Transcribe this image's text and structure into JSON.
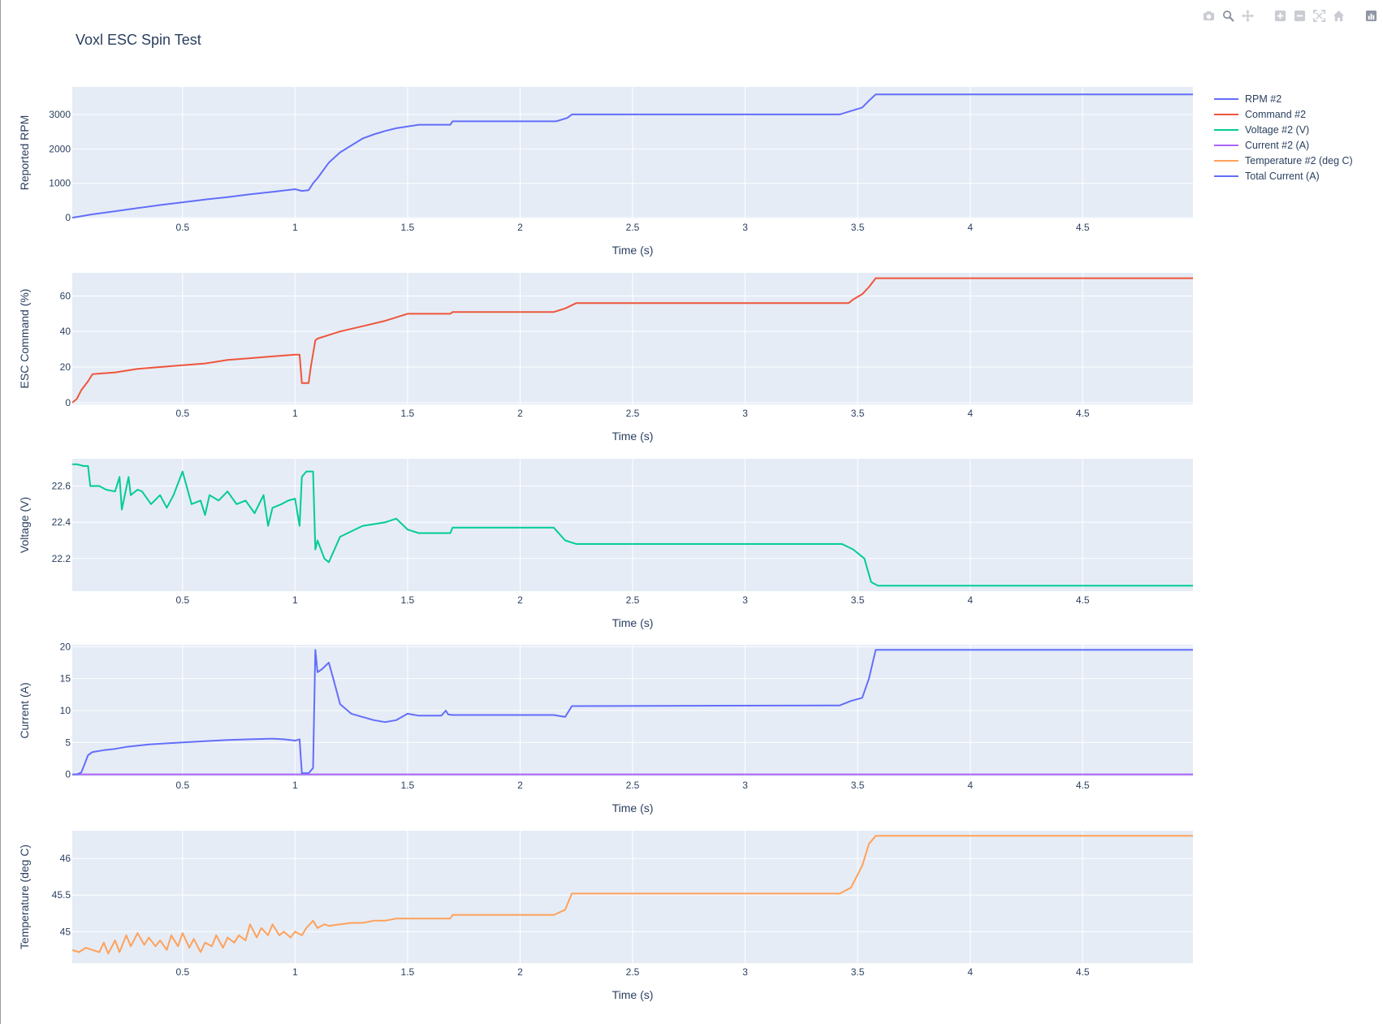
{
  "title": "Voxl ESC Spin Test",
  "modebar": {
    "icons": [
      "camera-icon",
      "zoom-icon",
      "pan-icon",
      "zoom-in-icon",
      "zoom-out-icon",
      "autoscale-icon",
      "reset-axes-icon",
      "plotly-logo-icon"
    ]
  },
  "colors": {
    "background": "#ffffff",
    "plot_bg": "#e5ecf6",
    "grid": "#ffffff",
    "text": "#2a3f5f",
    "rpm": "#636efa",
    "command": "#ef553b",
    "voltage": "#00cc96",
    "current": "#ab63fa",
    "temperature": "#ffa15a",
    "total_current": "#636efa"
  },
  "legend": {
    "items": [
      {
        "label": "RPM #2",
        "color": "#636efa"
      },
      {
        "label": "Command #2",
        "color": "#ef553b"
      },
      {
        "label": "Voltage #2 (V)",
        "color": "#00cc96"
      },
      {
        "label": "Current #2 (A)",
        "color": "#ab63fa"
      },
      {
        "label": "Temperature #2 (deg C)",
        "color": "#ffa15a"
      },
      {
        "label": "Total Current (A)",
        "color": "#636efa"
      }
    ]
  },
  "chart_data": [
    {
      "type": "line",
      "xlabel": "Time (s)",
      "ylabel": "Reported RPM",
      "xlim": [
        0.01,
        4.99
      ],
      "xticks": [
        0.5,
        1,
        1.5,
        2,
        2.5,
        3,
        3.5,
        4,
        4.5
      ],
      "xtick_labels": [
        "0.5",
        "1",
        "1.5",
        "2",
        "2.5",
        "3",
        "3.5",
        "4",
        "4.5"
      ],
      "ylim": [
        -20,
        3800
      ],
      "yticks": [
        0,
        1000,
        2000,
        3000
      ],
      "ytick_labels": [
        "0",
        "1000",
        "2000",
        "3000"
      ],
      "series": [
        {
          "name": "RPM #2",
          "color": "#636efa",
          "x": [
            0.01,
            0.1,
            0.2,
            0.3,
            0.4,
            0.5,
            0.6,
            0.7,
            0.8,
            0.9,
            1.0,
            1.03,
            1.06,
            1.08,
            1.1,
            1.15,
            1.2,
            1.25,
            1.3,
            1.35,
            1.4,
            1.45,
            1.5,
            1.55,
            1.69,
            1.7,
            2.16,
            2.21,
            2.23,
            3.42,
            3.47,
            3.52,
            3.55,
            3.58,
            4.99
          ],
          "values": [
            0,
            100,
            190,
            280,
            370,
            450,
            530,
            600,
            680,
            750,
            830,
            780,
            800,
            1000,
            1150,
            1600,
            1900,
            2100,
            2300,
            2420,
            2520,
            2600,
            2650,
            2700,
            2700,
            2800,
            2800,
            2900,
            3000,
            3000,
            3100,
            3200,
            3400,
            3580,
            3580
          ]
        }
      ]
    },
    {
      "type": "line",
      "xlabel": "Time (s)",
      "ylabel": "ESC Command (%)",
      "xlim": [
        0.01,
        4.99
      ],
      "xticks": [
        0.5,
        1,
        1.5,
        2,
        2.5,
        3,
        3.5,
        4,
        4.5
      ],
      "xtick_labels": [
        "0.5",
        "1",
        "1.5",
        "2",
        "2.5",
        "3",
        "3.5",
        "4",
        "4.5"
      ],
      "ylim": [
        -1,
        73
      ],
      "yticks": [
        0,
        20,
        40,
        60
      ],
      "ytick_labels": [
        "0",
        "20",
        "40",
        "60"
      ],
      "series": [
        {
          "name": "Command #2",
          "color": "#ef553b",
          "x": [
            0.01,
            0.03,
            0.05,
            0.08,
            0.1,
            0.2,
            0.3,
            0.4,
            0.5,
            0.6,
            0.7,
            0.8,
            0.9,
            1.0,
            1.02,
            1.03,
            1.06,
            1.07,
            1.09,
            1.1,
            1.15,
            1.2,
            1.3,
            1.4,
            1.5,
            1.69,
            1.7,
            2.15,
            2.2,
            2.25,
            3.46,
            3.48,
            3.52,
            3.55,
            3.58,
            4.99
          ],
          "values": [
            0,
            2,
            7,
            12,
            16,
            17,
            19,
            20,
            21,
            22,
            24,
            25,
            26,
            27,
            27,
            11,
            11,
            20,
            35,
            36,
            38,
            40,
            43,
            46,
            50,
            50,
            51,
            51,
            53,
            56,
            56,
            58,
            61,
            65,
            70,
            70
          ]
        }
      ]
    },
    {
      "type": "line",
      "xlabel": "Time (s)",
      "ylabel": "Voltage (V)",
      "xlim": [
        0.01,
        4.99
      ],
      "xticks": [
        0.5,
        1,
        1.5,
        2,
        2.5,
        3,
        3.5,
        4,
        4.5
      ],
      "xtick_labels": [
        "0.5",
        "1",
        "1.5",
        "2",
        "2.5",
        "3",
        "3.5",
        "4",
        "4.5"
      ],
      "ylim": [
        22.02,
        22.75
      ],
      "yticks": [
        22.2,
        22.4,
        22.6
      ],
      "ytick_labels": [
        "22.2",
        "22.4",
        "22.6"
      ],
      "series": [
        {
          "name": "Voltage #2 (V)",
          "color": "#00cc96",
          "x": [
            0.01,
            0.03,
            0.06,
            0.08,
            0.09,
            0.13,
            0.16,
            0.2,
            0.22,
            0.23,
            0.26,
            0.27,
            0.3,
            0.32,
            0.36,
            0.4,
            0.43,
            0.46,
            0.5,
            0.54,
            0.58,
            0.6,
            0.62,
            0.66,
            0.7,
            0.74,
            0.78,
            0.82,
            0.86,
            0.88,
            0.9,
            0.94,
            0.97,
            1.0,
            1.02,
            1.03,
            1.05,
            1.08,
            1.09,
            1.1,
            1.13,
            1.15,
            1.2,
            1.3,
            1.4,
            1.45,
            1.5,
            1.55,
            1.69,
            1.7,
            2.15,
            2.2,
            2.25,
            3.43,
            3.48,
            3.53,
            3.56,
            3.59,
            4.99
          ],
          "values": [
            22.72,
            22.72,
            22.71,
            22.71,
            22.6,
            22.6,
            22.58,
            22.57,
            22.65,
            22.47,
            22.65,
            22.55,
            22.58,
            22.57,
            22.5,
            22.55,
            22.48,
            22.55,
            22.68,
            22.5,
            22.52,
            22.44,
            22.55,
            22.52,
            22.57,
            22.5,
            22.52,
            22.45,
            22.55,
            22.38,
            22.48,
            22.5,
            22.52,
            22.53,
            22.38,
            22.65,
            22.68,
            22.68,
            22.25,
            22.3,
            22.2,
            22.18,
            22.32,
            22.38,
            22.4,
            22.42,
            22.36,
            22.34,
            22.34,
            22.37,
            22.37,
            22.3,
            22.28,
            22.28,
            22.25,
            22.2,
            22.07,
            22.05,
            22.05
          ]
        }
      ]
    },
    {
      "type": "line",
      "xlabel": "Time (s)",
      "ylabel": "Current (A)",
      "xlim": [
        0.01,
        4.99
      ],
      "xticks": [
        0.5,
        1,
        1.5,
        2,
        2.5,
        3,
        3.5,
        4,
        4.5
      ],
      "xtick_labels": [
        "0.5",
        "1",
        "1.5",
        "2",
        "2.5",
        "3",
        "3.5",
        "4",
        "4.5"
      ],
      "ylim": [
        -0.3,
        20.3
      ],
      "yticks": [
        0,
        5,
        10,
        15,
        20
      ],
      "ytick_labels": [
        "0",
        "5",
        "10",
        "15",
        "20"
      ],
      "series": [
        {
          "name": "Current #2 (A)",
          "color": "#ab63fa",
          "x": [
            0.01,
            4.99
          ],
          "values": [
            0,
            0
          ]
        },
        {
          "name": "Total Current (A)",
          "color": "#636efa",
          "x": [
            0.01,
            0.03,
            0.05,
            0.06,
            0.08,
            0.1,
            0.15,
            0.2,
            0.25,
            0.3,
            0.35,
            0.4,
            0.5,
            0.55,
            0.6,
            0.65,
            0.7,
            0.8,
            0.9,
            0.95,
            1.0,
            1.02,
            1.03,
            1.06,
            1.08,
            1.09,
            1.1,
            1.12,
            1.15,
            1.17,
            1.2,
            1.25,
            1.3,
            1.35,
            1.4,
            1.45,
            1.5,
            1.55,
            1.65,
            1.67,
            1.68,
            1.7,
            2.15,
            2.2,
            2.23,
            3.42,
            3.47,
            3.52,
            3.55,
            3.58,
            4.99
          ],
          "values": [
            0,
            0,
            0.3,
            1.2,
            3.0,
            3.5,
            3.8,
            4.0,
            4.3,
            4.5,
            4.7,
            4.8,
            5.0,
            5.1,
            5.2,
            5.3,
            5.4,
            5.5,
            5.6,
            5.5,
            5.3,
            5.5,
            0.2,
            0.2,
            1.0,
            19.5,
            16.0,
            16.5,
            17.5,
            15.0,
            11.0,
            9.5,
            9.0,
            8.5,
            8.2,
            8.5,
            9.5,
            9.2,
            9.2,
            10.0,
            9.4,
            9.3,
            9.3,
            9.0,
            10.7,
            10.8,
            11.5,
            12.0,
            15.0,
            19.5,
            19.5
          ]
        }
      ]
    },
    {
      "type": "line",
      "xlabel": "Time (s)",
      "ylabel": "Temperature (deg C)",
      "xlim": [
        0.01,
        4.99
      ],
      "xticks": [
        0.5,
        1,
        1.5,
        2,
        2.5,
        3,
        3.5,
        4,
        4.5
      ],
      "xtick_labels": [
        "0.5",
        "1",
        "1.5",
        "2",
        "2.5",
        "3",
        "3.5",
        "4",
        "4.5"
      ],
      "ylim": [
        44.57,
        46.38
      ],
      "yticks": [
        45,
        45.5,
        46
      ],
      "ytick_labels": [
        "45",
        "45.5",
        "46"
      ],
      "series": [
        {
          "name": "Temperature #2 (deg C)",
          "color": "#ffa15a",
          "x": [
            0.01,
            0.04,
            0.07,
            0.1,
            0.13,
            0.15,
            0.17,
            0.2,
            0.22,
            0.25,
            0.27,
            0.3,
            0.33,
            0.35,
            0.38,
            0.4,
            0.43,
            0.45,
            0.48,
            0.5,
            0.53,
            0.55,
            0.58,
            0.6,
            0.63,
            0.65,
            0.68,
            0.7,
            0.73,
            0.75,
            0.78,
            0.8,
            0.83,
            0.85,
            0.88,
            0.9,
            0.93,
            0.95,
            0.98,
            1.0,
            1.03,
            1.05,
            1.08,
            1.1,
            1.13,
            1.15,
            1.2,
            1.25,
            1.3,
            1.35,
            1.4,
            1.45,
            1.5,
            1.55,
            1.69,
            1.7,
            2.15,
            2.2,
            2.23,
            3.42,
            3.47,
            3.52,
            3.55,
            3.58,
            4.99
          ],
          "values": [
            44.75,
            44.72,
            44.78,
            44.75,
            44.72,
            44.85,
            44.7,
            44.88,
            44.72,
            44.95,
            44.8,
            44.98,
            44.82,
            44.92,
            44.8,
            44.88,
            44.75,
            44.95,
            44.8,
            44.98,
            44.78,
            44.9,
            44.72,
            44.85,
            44.8,
            44.95,
            44.78,
            44.92,
            44.85,
            44.95,
            44.88,
            45.1,
            44.92,
            45.05,
            44.95,
            45.1,
            44.95,
            45.0,
            44.92,
            45.0,
            44.95,
            45.05,
            45.15,
            45.05,
            45.1,
            45.08,
            45.1,
            45.12,
            45.12,
            45.15,
            45.15,
            45.18,
            45.18,
            45.18,
            45.18,
            45.23,
            45.23,
            45.3,
            45.52,
            45.52,
            45.6,
            45.9,
            46.2,
            46.31,
            46.31
          ]
        }
      ]
    }
  ]
}
